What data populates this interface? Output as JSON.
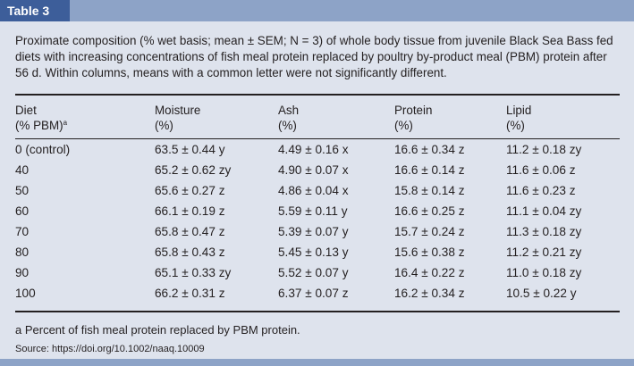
{
  "table_label": "Table 3",
  "caption": "Proximate composition (% wet basis; mean ± SEM; N = 3) of whole body tissue from juvenile Black Sea Bass fed diets with increasing concentrations of fish meal protein replaced by poultry by-product meal (PBM) protein after 56 d. Within columns, means with a common letter were not significantly different.",
  "columns": [
    {
      "line1": "Diet",
      "line2": "(% PBM)",
      "mark": "a"
    },
    {
      "line1": "Moisture",
      "line2": "(%)",
      "mark": ""
    },
    {
      "line1": "Ash",
      "line2": "(%)",
      "mark": ""
    },
    {
      "line1": "Protein",
      "line2": "(%)",
      "mark": ""
    },
    {
      "line1": "Lipid",
      "line2": "(%)",
      "mark": ""
    }
  ],
  "rows": [
    [
      "0 (control)",
      "63.5 ± 0.44 y",
      "4.49 ± 0.16 x",
      "16.6 ± 0.34 z",
      "11.2 ± 0.18 zy"
    ],
    [
      "40",
      "65.2 ± 0.62 zy",
      "4.90 ± 0.07 x",
      "16.6 ± 0.14 z",
      "11.6 ± 0.06 z"
    ],
    [
      "50",
      "65.6 ± 0.27 z",
      "4.86 ± 0.04 x",
      "15.8 ± 0.14 z",
      "11.6 ± 0.23 z"
    ],
    [
      "60",
      "66.1 ± 0.19 z",
      "5.59 ± 0.11 y",
      "16.6 ± 0.25 z",
      "11.1 ± 0.04 zy"
    ],
    [
      "70",
      "65.8 ± 0.47 z",
      "5.39 ± 0.07 y",
      "15.7 ± 0.24 z",
      "11.3 ± 0.18 zy"
    ],
    [
      "80",
      "65.8 ± 0.43 z",
      "5.45 ± 0.13 y",
      "15.6 ± 0.38 z",
      "11.2 ± 0.21 zy"
    ],
    [
      "90",
      "65.1 ± 0.33 zy",
      "5.52 ± 0.07 y",
      "16.4 ± 0.22 z",
      "11.0 ± 0.18 zy"
    ],
    [
      "100",
      "66.2 ± 0.31 z",
      "6.37 ± 0.07 z",
      "16.2 ± 0.34 z",
      "10.5 ± 0.22 y"
    ]
  ],
  "footnote": {
    "mark": "a",
    "text": " Percent of fish meal protein replaced by PBM protein."
  },
  "source": "Source: https://doi.org/10.1002/naaq.10009"
}
